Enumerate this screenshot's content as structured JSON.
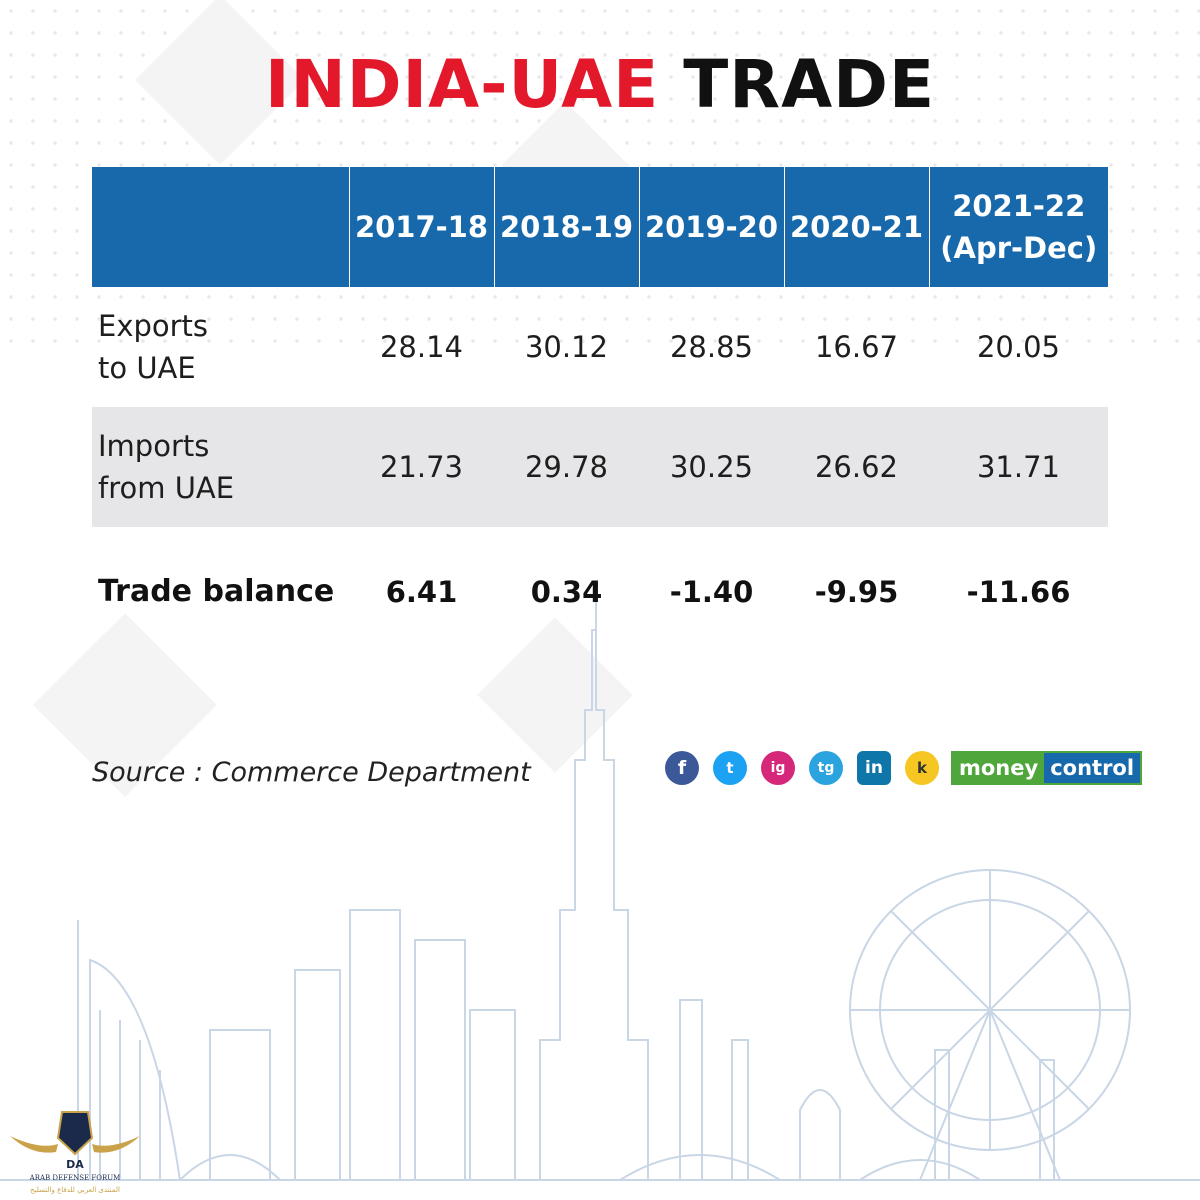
{
  "title": {
    "part1": "INDIA-UAE",
    "part2": "TRADE"
  },
  "chart_data": {
    "type": "table",
    "title": "INDIA-UAE TRADE",
    "columns": [
      "",
      "2017-18",
      "2018-19",
      "2019-20",
      "2020-21",
      "2021-22 (Apr-Dec)"
    ],
    "header": {
      "col1": "2017-18",
      "col2": "2018-19",
      "col3": "2019-20",
      "col4": "2020-21",
      "col5_line1": "2021-22",
      "col5_line2": "(Apr-Dec)"
    },
    "rows": [
      {
        "label_line1": "Exports",
        "label_line2": "to UAE",
        "values": [
          "28.14",
          "30.12",
          "28.85",
          "16.67",
          "20.05"
        ]
      },
      {
        "label_line1": "Imports",
        "label_line2": "from UAE",
        "values": [
          "21.73",
          "29.78",
          "30.25",
          "26.62",
          "31.71"
        ]
      },
      {
        "label_line1": "Trade balance",
        "values": [
          "6.41",
          "0.34",
          "-1.40",
          "-9.95",
          "-11.66"
        ]
      }
    ]
  },
  "source": "Source : Commerce Department",
  "social": {
    "facebook": "f",
    "twitter": "t",
    "instagram": "ig",
    "telegram": "tg",
    "linkedin": "in",
    "koo": "k"
  },
  "brand": {
    "part1": "money",
    "part2": "control"
  },
  "watermark": {
    "initials": "DA",
    "line1": "ARAB DEFENSE FORUM",
    "line2": "المنتدى العربي للدفاع والتسليح"
  },
  "colors": {
    "header_bg": "#1769ab",
    "title_red": "#e3192b",
    "row_shade": "#e6e6e8"
  }
}
